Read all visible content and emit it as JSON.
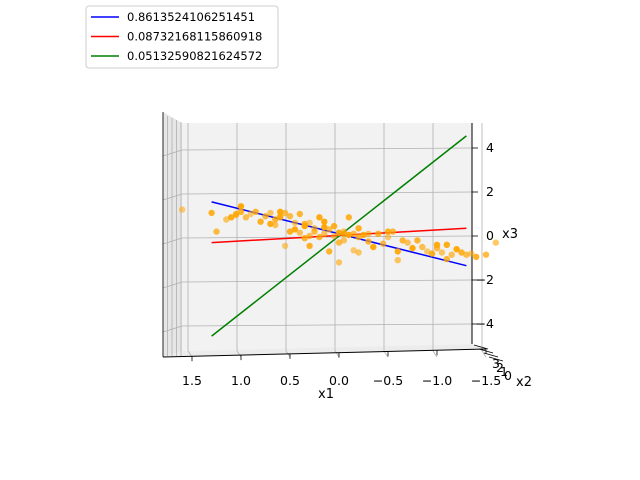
{
  "chart_data": {
    "type": "scatter",
    "projection": "3d",
    "view": "side view looking along x2, x1 axis decreasing to the right",
    "xlabel": "x1",
    "ylabel": "x2",
    "zlabel": "x3",
    "xlim": [
      -1.5,
      1.5
    ],
    "zlim": [
      -5,
      5
    ],
    "x_ticks": [
      "1.5",
      "1.0",
      "0.5",
      "0.0",
      "−0.5",
      "−1.0",
      "−1.5"
    ],
    "z_ticks": [
      "4",
      "2",
      "0",
      "−2",
      "−4"
    ],
    "y_ticks": [
      "3",
      "2",
      "1",
      "0"
    ],
    "grid": true,
    "legend_position": "top-left",
    "lines": [
      {
        "name": "0.8613524106251451",
        "color": "#0000ff",
        "points": [
          [
            1.3,
            1.55
          ],
          [
            -1.3,
            -1.35
          ]
        ]
      },
      {
        "name": "0.08732168115860918",
        "color": "#ff0000",
        "points": [
          [
            1.3,
            -0.3
          ],
          [
            -1.3,
            0.35
          ]
        ]
      },
      {
        "name": "0.05132590821624572",
        "color": "#008000",
        "points": [
          [
            1.3,
            -4.55
          ],
          [
            -1.3,
            4.55
          ]
        ]
      }
    ],
    "scatter_color": "#ffa500",
    "points": [
      [
        1.6,
        1.2
      ],
      [
        1.3,
        1.05
      ],
      [
        1.25,
        0.2
      ],
      [
        1.15,
        0.75
      ],
      [
        1.1,
        0.85
      ],
      [
        1.05,
        1.0
      ],
      [
        1.05,
        0.95
      ],
      [
        1.0,
        1.35
      ],
      [
        1.0,
        1.1
      ],
      [
        0.95,
        0.85
      ],
      [
        0.9,
        1.0
      ],
      [
        0.8,
        0.65
      ],
      [
        0.75,
        0.9
      ],
      [
        0.7,
        1.05
      ],
      [
        0.7,
        0.55
      ],
      [
        0.65,
        0.75
      ],
      [
        0.65,
        0.5
      ],
      [
        0.6,
        1.1
      ],
      [
        0.6,
        0.85
      ],
      [
        0.55,
        1.05
      ],
      [
        0.55,
        -0.45
      ],
      [
        0.5,
        0.2
      ],
      [
        0.5,
        0.9
      ],
      [
        0.45,
        0.6
      ],
      [
        0.45,
        0.3
      ],
      [
        0.4,
        1.0
      ],
      [
        0.4,
        0.15
      ],
      [
        0.35,
        0.45
      ],
      [
        0.35,
        -0.1
      ],
      [
        0.3,
        0.0
      ],
      [
        0.3,
        0.6
      ],
      [
        0.3,
        -0.45
      ],
      [
        0.25,
        0.2
      ],
      [
        0.25,
        0.35
      ],
      [
        0.2,
        0.85
      ],
      [
        0.2,
        -0.05
      ],
      [
        0.15,
        0.1
      ],
      [
        0.15,
        0.65
      ],
      [
        0.1,
        -0.7
      ],
      [
        0.1,
        0.3
      ],
      [
        0.05,
        0.0
      ],
      [
        0.05,
        0.45
      ],
      [
        0.0,
        -0.3
      ],
      [
        0.0,
        -1.2
      ],
      [
        0.0,
        0.15
      ],
      [
        -0.05,
        0.1
      ],
      [
        -0.05,
        -0.2
      ],
      [
        -0.1,
        0.05
      ],
      [
        -0.1,
        0.85
      ],
      [
        -0.15,
        0.1
      ],
      [
        -0.15,
        -0.65
      ],
      [
        -0.2,
        0.35
      ],
      [
        -0.2,
        -0.05
      ],
      [
        -0.2,
        -0.75
      ],
      [
        -0.25,
        0.05
      ],
      [
        -0.3,
        -0.25
      ],
      [
        -0.3,
        0.1
      ],
      [
        -0.35,
        -0.5
      ],
      [
        -0.4,
        0.1
      ],
      [
        -0.45,
        -0.35
      ],
      [
        -0.5,
        -0.05
      ],
      [
        -0.5,
        0.2
      ],
      [
        -0.55,
        0.2
      ],
      [
        -0.6,
        -1.1
      ],
      [
        -0.6,
        -0.7
      ],
      [
        -0.65,
        -0.2
      ],
      [
        -0.7,
        -0.3
      ],
      [
        -0.75,
        -0.55
      ],
      [
        -0.8,
        -0.2
      ],
      [
        -0.85,
        -0.5
      ],
      [
        -0.9,
        -0.7
      ],
      [
        -0.95,
        -0.8
      ],
      [
        -1.0,
        -0.55
      ],
      [
        -1.05,
        -0.75
      ],
      [
        -1.1,
        -0.4
      ],
      [
        -1.1,
        -1.05
      ],
      [
        -1.15,
        -0.85
      ],
      [
        -1.2,
        -0.6
      ],
      [
        -1.25,
        -0.75
      ],
      [
        -1.3,
        -0.85
      ],
      [
        -1.35,
        -0.8
      ],
      [
        -1.4,
        -0.95
      ],
      [
        -1.5,
        -0.85
      ],
      [
        -1.6,
        -0.3
      ],
      [
        -1.0,
        -0.4
      ],
      [
        0.85,
        1.1
      ],
      [
        -0.05,
        0.2
      ],
      [
        0.15,
        0.4
      ],
      [
        0.35,
        0.55
      ],
      [
        0.6,
        0.9
      ]
    ]
  }
}
